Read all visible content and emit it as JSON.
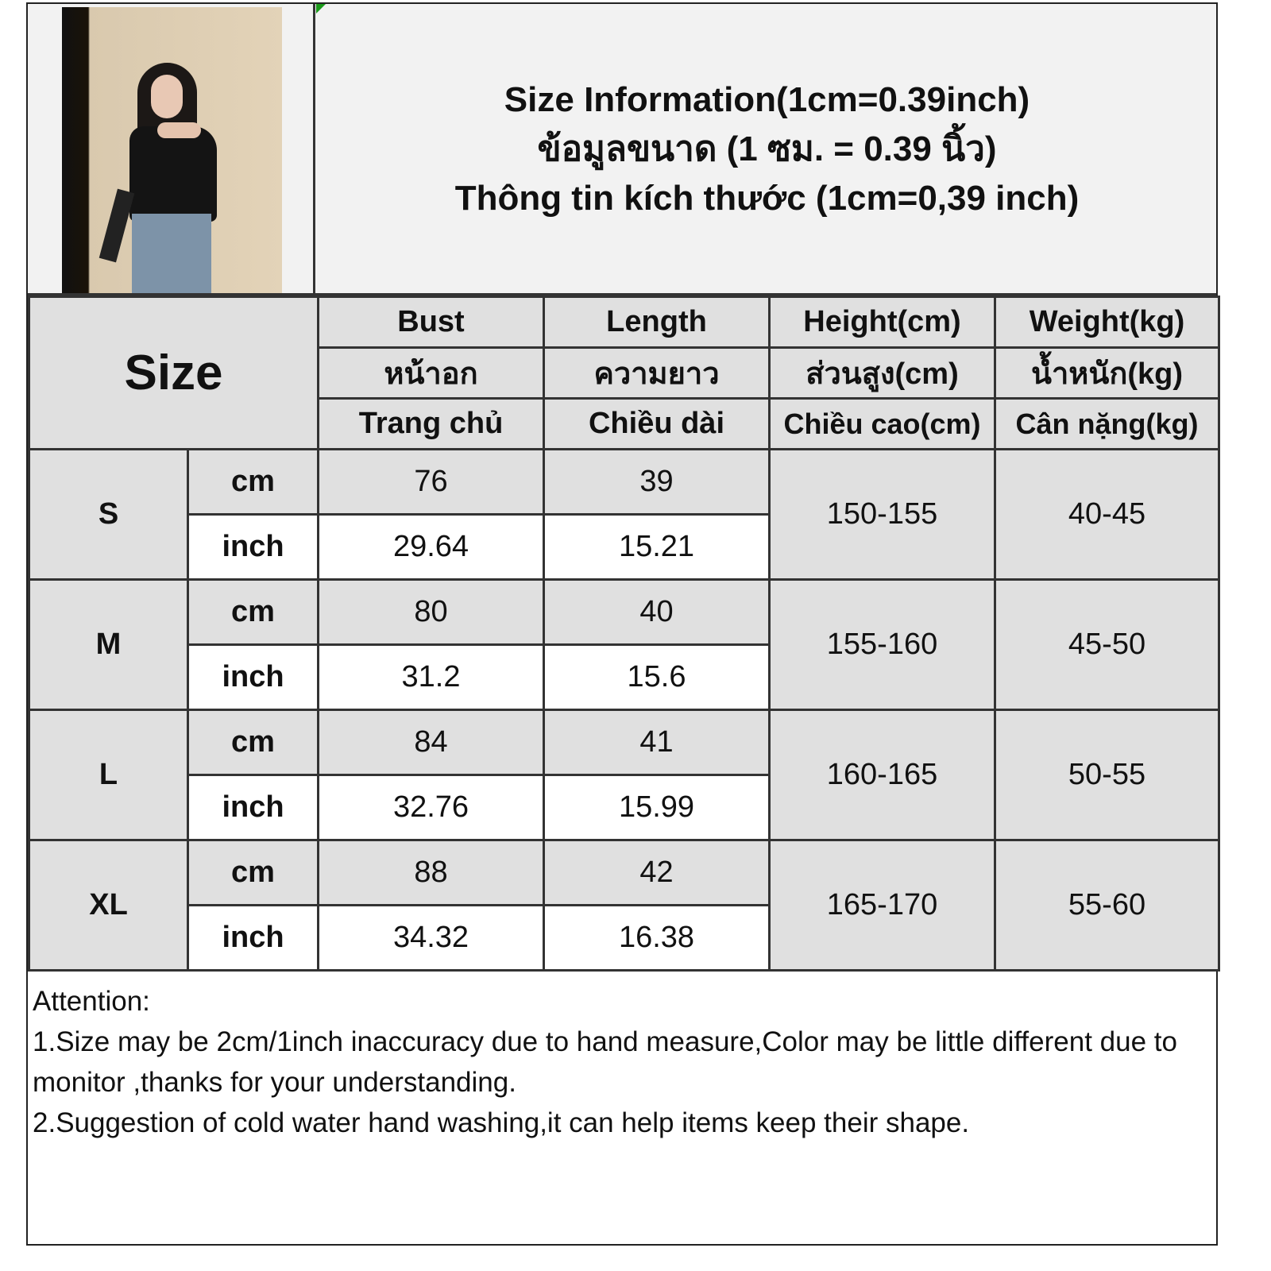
{
  "title_lines": [
    "Size Information(1cm=0.39inch)",
    "ข้อมูลขนาด (1 ซม. = 0.39 นิ้ว)",
    "Thông tin kích thước (1cm=0,39 inch)"
  ],
  "size_header": "Size",
  "columns": [
    {
      "en": "Bust",
      "th": "หน้าอก",
      "vi": "Trang chủ"
    },
    {
      "en": "Length",
      "th": "ความยาว",
      "vi": "Chiều dài"
    },
    {
      "en": "Height(cm)",
      "th": "ส่วนสูง(cm)",
      "vi": "Chiều cao(cm)"
    },
    {
      "en": "Weight(kg)",
      "th": "น้ำหนัก(kg)",
      "vi": "Cân nặng(kg)"
    }
  ],
  "units": {
    "cm": "cm",
    "inch": "inch"
  },
  "rows": [
    {
      "size": "S",
      "bust_cm": "76",
      "length_cm": "39",
      "bust_in": "29.64",
      "length_in": "15.21",
      "height": "150-155",
      "weight": "40-45"
    },
    {
      "size": "M",
      "bust_cm": "80",
      "length_cm": "40",
      "bust_in": "31.2",
      "length_in": "15.6",
      "height": "155-160",
      "weight": "45-50"
    },
    {
      "size": "L",
      "bust_cm": "84",
      "length_cm": "41",
      "bust_in": "32.76",
      "length_in": "15.99",
      "height": "160-165",
      "weight": "50-55"
    },
    {
      "size": "XL",
      "bust_cm": "88",
      "length_cm": "42",
      "bust_in": "34.32",
      "length_in": "16.38",
      "height": "165-170",
      "weight": "55-60"
    }
  ],
  "notes": [
    "Attention:",
    "1.Size may be 2cm/1inch inaccuracy due to hand measure,Color may be little different due to monitor ,thanks for your understanding.",
    "2.Suggestion of cold water hand washing,it can help items keep their shape."
  ],
  "colors": {
    "header_bg": "#e0e0e0",
    "border": "#333333",
    "flag": "#1a9a1a"
  }
}
